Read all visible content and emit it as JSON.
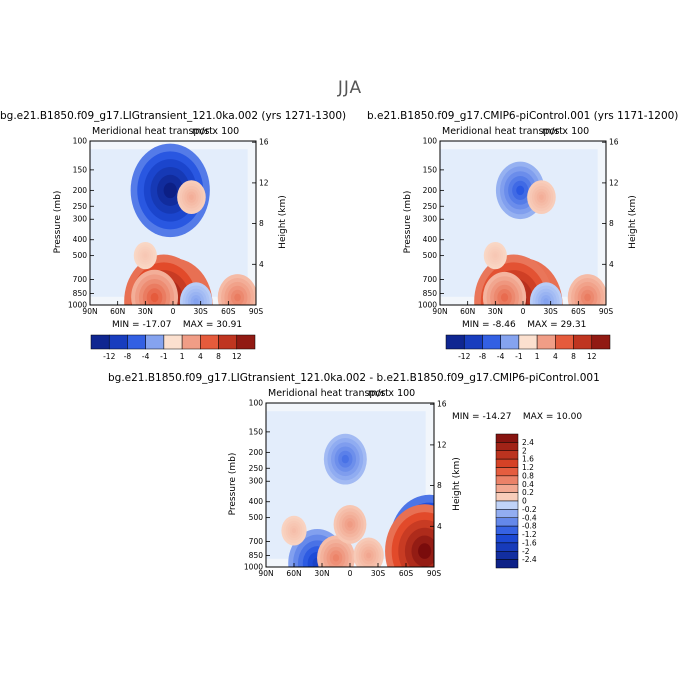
{
  "figure": {
    "title": "JJA",
    "colors": {
      "blue_extreme": "#0a1a7a",
      "blue_strong": "#1f4fe0",
      "blue_light": "#d7e6fb",
      "neutral": "#f2f6fb",
      "red_light": "#fbe0cf",
      "red_strong": "#e24a2a",
      "red_extreme": "#7a0c0c",
      "frame": "#000000"
    }
  },
  "chart_data": [
    {
      "type": "heatmap",
      "title": "bg.e21.B1850.f09_g17.LIGtransient_121.0ka.002 (yrs 1271-1300)",
      "subtitle": "Meridional heat transport",
      "units": "m/s x 100",
      "xlabel": "",
      "ylabel": "Pressure (mb)",
      "y2label": "Height (km)",
      "x_ticks": [
        "90N",
        "60N",
        "30N",
        "0",
        "30S",
        "60S",
        "90S"
      ],
      "xlim": [
        90,
        -90
      ],
      "y_ticks": [
        100,
        150,
        200,
        250,
        300,
        400,
        500,
        700,
        850,
        1000
      ],
      "ylim": [
        1000,
        100
      ],
      "y_scale": "log",
      "y2_ticks": [
        4,
        8,
        12,
        16
      ],
      "min": "-17.07",
      "max": "30.91",
      "min_label": "MIN =",
      "max_label": "MAX =",
      "colorbar": {
        "orientation": "horizontal",
        "labels": [
          "-12",
          "-8",
          "-4",
          "-1",
          "1",
          "4",
          "8",
          "12"
        ]
      },
      "features": [
        {
          "lat": 0,
          "p": 1000,
          "value": 30.91
        },
        {
          "lat": 10,
          "p": 950,
          "value": 18
        },
        {
          "lat": 20,
          "p": 900,
          "value": 8
        },
        {
          "lat": 3,
          "p": 200,
          "value": -17.07
        },
        {
          "lat": -20,
          "p": 220,
          "value": 3
        },
        {
          "lat": -25,
          "p": 950,
          "value": -4
        },
        {
          "lat": -70,
          "p": 900,
          "value": 6
        },
        {
          "lat": 30,
          "p": 500,
          "value": 1.5
        }
      ]
    },
    {
      "type": "heatmap",
      "title": "b.e21.B1850.f09_g17.CMIP6-piControl.001 (yrs 1171-1200)",
      "subtitle": "Meridional heat transport",
      "units": "m/s x 100",
      "xlabel": "",
      "ylabel": "Pressure (mb)",
      "y2label": "Height (km)",
      "x_ticks": [
        "90N",
        "60N",
        "30N",
        "0",
        "30S",
        "60S",
        "90S"
      ],
      "xlim": [
        90,
        -90
      ],
      "y_ticks": [
        100,
        150,
        200,
        250,
        300,
        400,
        500,
        700,
        850,
        1000
      ],
      "ylim": [
        1000,
        100
      ],
      "y_scale": "log",
      "y2_ticks": [
        4,
        8,
        12,
        16
      ],
      "min": "-8.46",
      "max": "29.31",
      "min_label": "MIN =",
      "max_label": "MAX =",
      "colorbar": {
        "orientation": "horizontal",
        "labels": [
          "-12",
          "-8",
          "-4",
          "-1",
          "1",
          "4",
          "8",
          "12"
        ]
      },
      "features": [
        {
          "lat": 0,
          "p": 1000,
          "value": 29.31
        },
        {
          "lat": 10,
          "p": 950,
          "value": 17
        },
        {
          "lat": 20,
          "p": 900,
          "value": 7
        },
        {
          "lat": 3,
          "p": 200,
          "value": -8.46
        },
        {
          "lat": -20,
          "p": 220,
          "value": 3
        },
        {
          "lat": -25,
          "p": 950,
          "value": -4
        },
        {
          "lat": -70,
          "p": 900,
          "value": 6
        },
        {
          "lat": 30,
          "p": 500,
          "value": 1.5
        }
      ]
    },
    {
      "type": "heatmap",
      "title": "bg.e21.B1850.f09_g17.LIGtransient_121.0ka.002 - b.e21.B1850.f09_g17.CMIP6-piControl.001",
      "subtitle": "Meridional heat transport",
      "units": "m/s x 100",
      "xlabel": "",
      "ylabel": "Pressure (mb)",
      "y2label": "Height (km)",
      "x_ticks": [
        "90N",
        "60N",
        "30N",
        "0",
        "30S",
        "60S",
        "90S"
      ],
      "xlim": [
        90,
        -90
      ],
      "y_ticks": [
        100,
        150,
        200,
        250,
        300,
        400,
        500,
        700,
        850,
        1000
      ],
      "ylim": [
        1000,
        100
      ],
      "y_scale": "log",
      "y2_ticks": [
        4,
        8,
        12,
        16
      ],
      "min": "-14.27",
      "max": "10.00",
      "min_label": "MIN =",
      "max_label": "MAX =",
      "colorbar": {
        "orientation": "vertical",
        "labels": [
          "2.4",
          "2",
          "1.6",
          "1.2",
          "0.8",
          "0.4",
          "0.2",
          "0",
          "-0.2",
          "-0.4",
          "-0.8",
          "-1.2",
          "-1.6",
          "-2",
          "-2.4"
        ]
      },
      "features": [
        {
          "lat": 5,
          "p": 220,
          "value": -1.0
        },
        {
          "lat": 35,
          "p": 950,
          "value": -1.6
        },
        {
          "lat": 15,
          "p": 880,
          "value": 0.8
        },
        {
          "lat": 0,
          "p": 550,
          "value": 0.6
        },
        {
          "lat": -20,
          "p": 850,
          "value": 0.5
        },
        {
          "lat": -85,
          "p": 700,
          "value": -14.27
        },
        {
          "lat": -80,
          "p": 800,
          "value": 10.0
        },
        {
          "lat": 60,
          "p": 600,
          "value": 0.3
        }
      ]
    }
  ]
}
